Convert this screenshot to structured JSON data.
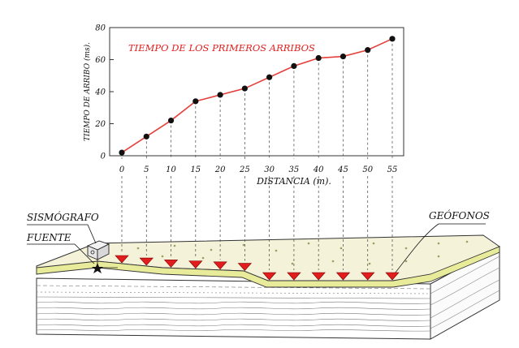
{
  "chart_data": {
    "type": "line",
    "title": "TIEMPO DE LOS PRIMEROS ARRIBOS",
    "xlabel": "DISTANCIA (m).",
    "ylabel": "TIEMPO DE ARRIBO (ms).",
    "x": [
      0,
      5,
      10,
      15,
      20,
      25,
      30,
      35,
      40,
      45,
      50,
      55
    ],
    "y": [
      2,
      12,
      22,
      34,
      38,
      42,
      49,
      56,
      61,
      62,
      66,
      73
    ],
    "xticks": [
      "0",
      "5",
      "10",
      "15",
      "20",
      "25",
      "30",
      "35",
      "40",
      "45",
      "50",
      "55"
    ],
    "yticks": [
      "0",
      "20",
      "40",
      "60",
      "80"
    ],
    "xlim": [
      0,
      55
    ],
    "ylim": [
      0,
      80
    ],
    "grid": false,
    "line_color": "#e5413c",
    "marker_color": "#111111"
  },
  "diagram": {
    "seismograph_label": "SISMÓGRAFO",
    "source_label": "FUENTE",
    "geophones_label": "GEÓFONOS",
    "geophone_color": "#e21d1d",
    "topsoil_color": "#e8eb9a",
    "surface_color": "#f4f2d8"
  }
}
